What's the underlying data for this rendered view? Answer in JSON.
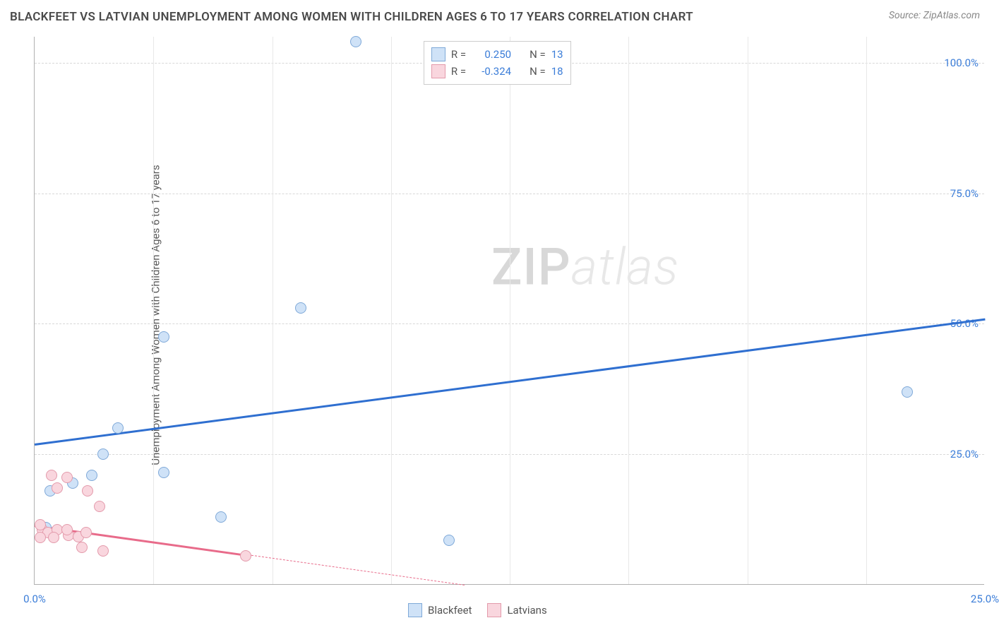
{
  "title": "BLACKFEET VS LATVIAN UNEMPLOYMENT AMONG WOMEN WITH CHILDREN AGES 6 TO 17 YEARS CORRELATION CHART",
  "source": "Source: ZipAtlas.com",
  "y_axis_label": "Unemployment Among Women with Children Ages 6 to 17 years",
  "watermark_a": "ZIP",
  "watermark_b": "atlas",
  "chart": {
    "type": "scatter",
    "background_color": "#ffffff",
    "grid_color": "#d8d8d8",
    "axis_color": "#b0b0b0",
    "tick_label_color": "#3b7dd8",
    "xlim": [
      0,
      25
    ],
    "ylim": [
      0,
      105
    ],
    "y_ticks": [
      {
        "v": 25,
        "label": "25.0%"
      },
      {
        "v": 50,
        "label": "50.0%"
      },
      {
        "v": 75,
        "label": "75.0%"
      },
      {
        "v": 100,
        "label": "100.0%"
      }
    ],
    "x_ticks": [
      {
        "v": 0,
        "label": "0.0%"
      },
      {
        "v": 25,
        "label": "25.0%"
      }
    ],
    "x_gridlines": [
      3.125,
      6.25,
      9.375,
      12.5,
      15.625,
      18.75,
      21.875
    ],
    "series": [
      {
        "name": "Blackfeet",
        "marker_fill": "#cfe2f7",
        "marker_stroke": "#7fa9d8",
        "marker_size": 16,
        "trend_color": "#2f6fd0",
        "trend_start": {
          "x": 0,
          "y": 27
        },
        "trend_end": {
          "x": 25,
          "y": 51
        },
        "trend_solid_until_x": 25,
        "points": [
          {
            "x": 8.45,
            "y": 104
          },
          {
            "x": 7.0,
            "y": 53
          },
          {
            "x": 3.4,
            "y": 47.5
          },
          {
            "x": 2.2,
            "y": 30
          },
          {
            "x": 1.8,
            "y": 25
          },
          {
            "x": 3.4,
            "y": 21.5
          },
          {
            "x": 1.5,
            "y": 21
          },
          {
            "x": 0.4,
            "y": 18
          },
          {
            "x": 1.0,
            "y": 19.5
          },
          {
            "x": 0.3,
            "y": 11
          },
          {
            "x": 4.9,
            "y": 13
          },
          {
            "x": 10.9,
            "y": 8.5
          },
          {
            "x": 22.95,
            "y": 37
          }
        ]
      },
      {
        "name": "Latvians",
        "marker_fill": "#f9d6de",
        "marker_stroke": "#e39aab",
        "marker_size": 16,
        "trend_color": "#e86b8a",
        "trend_start": {
          "x": 0,
          "y": 11.5
        },
        "trend_end": {
          "x": 11.3,
          "y": 0
        },
        "trend_solid_until_x": 5.6,
        "points": [
          {
            "x": 0.45,
            "y": 21
          },
          {
            "x": 0.85,
            "y": 20.5
          },
          {
            "x": 0.6,
            "y": 18.5
          },
          {
            "x": 1.4,
            "y": 18
          },
          {
            "x": 1.7,
            "y": 15
          },
          {
            "x": 0.2,
            "y": 10.5
          },
          {
            "x": 0.35,
            "y": 10
          },
          {
            "x": 0.6,
            "y": 10.5
          },
          {
            "x": 0.9,
            "y": 9.5
          },
          {
            "x": 0.15,
            "y": 9
          },
          {
            "x": 0.15,
            "y": 11.5
          },
          {
            "x": 0.5,
            "y": 9
          },
          {
            "x": 0.85,
            "y": 10.5
          },
          {
            "x": 1.15,
            "y": 9.2
          },
          {
            "x": 1.35,
            "y": 10
          },
          {
            "x": 1.25,
            "y": 7.2
          },
          {
            "x": 1.8,
            "y": 6.5
          },
          {
            "x": 5.55,
            "y": 5.5
          }
        ]
      }
    ]
  },
  "legend_top": {
    "pos_left_pct": 41,
    "rows": [
      {
        "swatch_fill": "#cfe2f7",
        "swatch_stroke": "#7fa9d8",
        "r_label": "R =",
        "r_val": "0.250",
        "n_label": "N =",
        "n_val": "13"
      },
      {
        "swatch_fill": "#f9d6de",
        "swatch_stroke": "#e39aab",
        "r_label": "R =",
        "r_val": "-0.324",
        "n_label": "N =",
        "n_val": "18"
      }
    ]
  },
  "legend_bottom": {
    "items": [
      {
        "swatch_fill": "#cfe2f7",
        "swatch_stroke": "#7fa9d8",
        "label": "Blackfeet"
      },
      {
        "swatch_fill": "#f9d6de",
        "swatch_stroke": "#e39aab",
        "label": "Latvians"
      }
    ]
  }
}
